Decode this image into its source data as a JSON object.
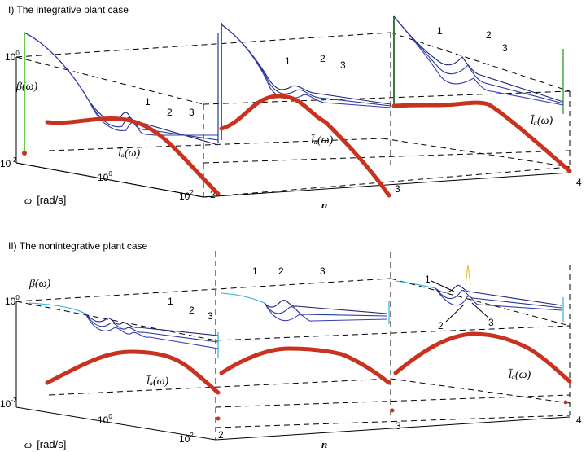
{
  "curve_labels": [
    "1",
    "2",
    "3"
  ],
  "la_label": "l̄ₐ(ω)",
  "panels": [
    {
      "title": "I) The integrative plant case",
      "ylabel": "β(ω)",
      "xlabel_symbol": "ω",
      "xlabel_unit": "[rad/s]",
      "nlabel": "n",
      "y_ticks": [
        {
          "base": "10",
          "exp": "0"
        },
        {
          "base": "10",
          "exp": "-2"
        }
      ],
      "x_ticks": [
        {
          "base": "10",
          "exp": "0"
        },
        {
          "base": "10",
          "exp": "2"
        }
      ],
      "n_ticks": [
        "2",
        "3",
        "4"
      ]
    },
    {
      "title": "II) The nonintegrative plant case",
      "ylabel": "β(ω)",
      "xlabel_symbol": "ω",
      "xlabel_unit": "[rad/s]",
      "nlabel": "n",
      "y_ticks": [
        {
          "base": "10",
          "exp": "0"
        },
        {
          "base": "10",
          "exp": "-2"
        }
      ],
      "x_ticks": [
        {
          "base": "10",
          "exp": "0"
        },
        {
          "base": "10",
          "exp": "2"
        }
      ],
      "n_ticks": [
        "2",
        "3",
        "4"
      ]
    }
  ],
  "chart_data": [
    {
      "type": "line",
      "title": "I) The integrative plant case",
      "ylabel": "β(ω)",
      "xlabel": "ω [rad/s]",
      "zlabel": "n",
      "n": [
        2,
        3,
        4
      ],
      "x_scale": "log",
      "y_scale": "log",
      "x_ticks": [
        "10^0",
        "10^2"
      ],
      "y_ticks": [
        "10^0",
        "10^-2"
      ],
      "series": [
        {
          "name": "1"
        },
        {
          "name": "2"
        },
        {
          "name": "3"
        },
        {
          "name": "l̄ₐ(ω)"
        }
      ]
    },
    {
      "type": "line",
      "title": "II) The nonintegrative plant case",
      "ylabel": "β(ω)",
      "xlabel": "ω [rad/s]",
      "zlabel": "n",
      "n": [
        2,
        3,
        4
      ],
      "x_scale": "log",
      "y_scale": "log",
      "x_ticks": [
        "10^0",
        "10^2"
      ],
      "y_ticks": [
        "10^0",
        "10^-2"
      ],
      "series": [
        {
          "name": "1"
        },
        {
          "name": "2"
        },
        {
          "name": "3"
        },
        {
          "name": "l̄ₐ(ω)"
        }
      ]
    }
  ]
}
